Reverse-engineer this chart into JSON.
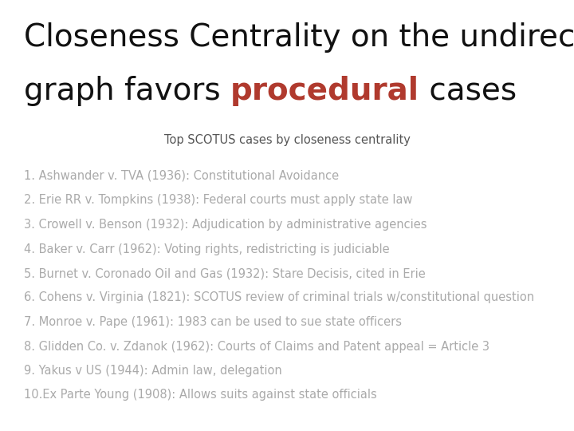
{
  "title_line1": "Closeness Centrality on the undirected",
  "title_line2_pre": "graph favors ",
  "title_highlighted": "procedural",
  "title_line2_post": " cases",
  "subtitle": "Top SCOTUS cases by closeness centrality",
  "items": [
    "1. Ashwander v. TVA (1936): Constitutional Avoidance",
    "2. Erie RR v. Tompkins (1938): Federal courts must apply state law",
    "3. Crowell v. Benson (1932): Adjudication by administrative agencies",
    "4. Baker v. Carr (1962): Voting rights, redistricting is judiciable",
    "5. Burnet v. Coronado Oil and Gas (1932): Stare Decisis, cited in Erie",
    "6. Cohens v. Virginia (1821): SCOTUS review of criminal trials w/constitutional question",
    "7. Monroe v. Pape (1961): 1983 can be used to sue state officers",
    "8. Glidden Co. v. Zdanok (1962): Courts of Claims and Patent appeal = Article 3",
    "9. Yakus v US (1944): Admin law, delegation",
    "10.Ex Parte Young (1908): Allows suits against state officials"
  ],
  "background_color": "#ffffff",
  "title_color": "#111111",
  "highlight_color": "#b03a2e",
  "subtitle_color": "#555555",
  "item_color": "#aaaaaa",
  "title_fontsize": 28,
  "subtitle_fontsize": 10.5,
  "item_fontsize": 10.5
}
